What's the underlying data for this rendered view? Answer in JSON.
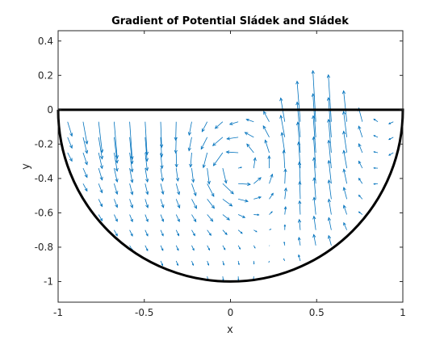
{
  "chart_data": {
    "type": "quiver",
    "title": "Gradient of Potential Sládek and Sládek",
    "xlabel": "x",
    "ylabel": "y",
    "xlim": [
      -1,
      1
    ],
    "ylim": [
      -1.12,
      0.46
    ],
    "xticks": [
      -1,
      -0.5,
      0,
      0.5,
      1
    ],
    "xtick_labels": [
      "-1",
      "-0.5",
      "0",
      "0.5",
      "1"
    ],
    "yticks": [
      0.4,
      0.2,
      0,
      -0.2,
      -0.4,
      -0.6,
      -0.8,
      -1
    ],
    "ytick_labels": [
      "0.4",
      "0.2",
      "0",
      "-0.2",
      "-0.4",
      "-0.6",
      "-0.8",
      "-1"
    ],
    "grid": false,
    "colors": {
      "arrows": "#0072BD",
      "boundary": "#000000",
      "axes": "#262626"
    },
    "boundary": {
      "shape": "upper-open semicircle",
      "center": [
        0,
        0
      ],
      "radius": 1
    }
  }
}
